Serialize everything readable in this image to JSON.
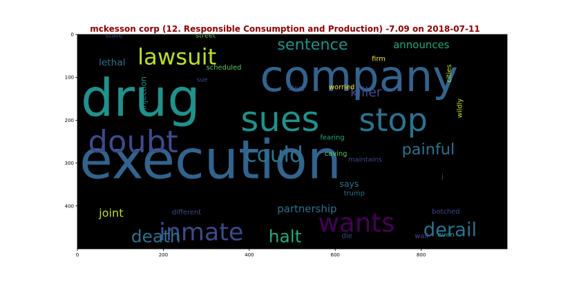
{
  "chart_data": {
    "type": "wordcloud",
    "title": "mckesson corp (12. Responsible Consumption and Production) -7.09 on 2018-07-11",
    "xlim": [
      0,
      1000
    ],
    "ylim": [
      500,
      0
    ],
    "x_ticks": [
      0,
      200,
      400,
      600,
      800
    ],
    "y_ticks": [
      0,
      100,
      200,
      300,
      400
    ],
    "background": "#000000",
    "words": [
      {
        "text": "execution",
        "x": 5,
        "y": 335,
        "size": 125,
        "color": "#33638d"
      },
      {
        "text": "drug",
        "x": 8,
        "y": 190,
        "size": 120,
        "color": "#21918c"
      },
      {
        "text": "company",
        "x": 425,
        "y": 132,
        "size": 100,
        "color": "#33638d"
      },
      {
        "text": "sues",
        "x": 380,
        "y": 225,
        "size": 80,
        "color": "#21918c"
      },
      {
        "text": "stop",
        "x": 655,
        "y": 225,
        "size": 74,
        "color": "#2c728e"
      },
      {
        "text": "doubt",
        "x": 25,
        "y": 275,
        "size": 72,
        "color": "#3e4a89"
      },
      {
        "text": "wants",
        "x": 560,
        "y": 460,
        "size": 60,
        "color": "#440154"
      },
      {
        "text": "lawsuit",
        "x": 140,
        "y": 70,
        "size": 52,
        "color": "#bddf26"
      },
      {
        "text": "inmate",
        "x": 190,
        "y": 480,
        "size": 56,
        "color": "#3e4a89"
      },
      {
        "text": "could",
        "x": 390,
        "y": 297,
        "size": 50,
        "color": "#2c728e"
      },
      {
        "text": "derail",
        "x": 805,
        "y": 470,
        "size": 44,
        "color": "#2c728e"
      },
      {
        "text": "sentence",
        "x": 465,
        "y": 35,
        "size": 36,
        "color": "#21918c"
      },
      {
        "text": "painful",
        "x": 755,
        "y": 280,
        "size": 36,
        "color": "#2c728e"
      },
      {
        "text": "halt",
        "x": 445,
        "y": 485,
        "size": 40,
        "color": "#22a884"
      },
      {
        "text": "death",
        "x": 125,
        "y": 485,
        "size": 40,
        "color": "#2c728e"
      },
      {
        "text": "killer",
        "x": 635,
        "y": 145,
        "size": 30,
        "color": "#3e4a89"
      },
      {
        "text": "announces",
        "x": 735,
        "y": 32,
        "size": 24,
        "color": "#22a884"
      },
      {
        "text": "partnership",
        "x": 465,
        "y": 415,
        "size": 24,
        "color": "#2c728e"
      },
      {
        "text": "joint",
        "x": 50,
        "y": 425,
        "size": 26,
        "color": "#bddf26"
      },
      {
        "text": "lethal",
        "x": 50,
        "y": 72,
        "size": 22,
        "color": "#2c728e"
      },
      {
        "text": "says",
        "x": 610,
        "y": 355,
        "size": 20,
        "color": "#2c728e"
      },
      {
        "text": "injection",
        "x": 160,
        "y": 175,
        "size": 18,
        "color": "#21918c",
        "rotate": -90
      },
      {
        "text": "wildly",
        "x": 895,
        "y": 195,
        "size": 16,
        "color": "#bddf26",
        "rotate": -90
      },
      {
        "text": "cities",
        "x": 870,
        "y": 112,
        "size": 16,
        "color": "#bddf26",
        "rotate": -90
      },
      {
        "text": "worried",
        "x": 585,
        "y": 128,
        "size": 16,
        "color": "#fde725"
      },
      {
        "text": "fearing",
        "x": 565,
        "y": 245,
        "size": 16,
        "color": "#22a884"
      },
      {
        "text": "caving",
        "x": 575,
        "y": 283,
        "size": 16,
        "color": "#5ec962"
      },
      {
        "text": "maintains",
        "x": 630,
        "y": 297,
        "size": 16,
        "color": "#3e4a89"
      },
      {
        "text": "botched",
        "x": 825,
        "y": 418,
        "size": 16,
        "color": "#3e4a89"
      },
      {
        "text": "different",
        "x": 220,
        "y": 420,
        "size": 16,
        "color": "#3e4a89"
      },
      {
        "text": "firm",
        "x": 685,
        "y": 62,
        "size": 16,
        "color": "#fde725"
      },
      {
        "text": "scheduled",
        "x": 300,
        "y": 82,
        "size": 16,
        "color": "#5ec962"
      },
      {
        "text": "state",
        "x": 65,
        "y": 7,
        "size": 16,
        "color": "#3e4a89"
      },
      {
        "text": "street",
        "x": 275,
        "y": 7,
        "size": 16,
        "color": "#5ec962"
      },
      {
        "text": "story",
        "x": 490,
        "y": 130,
        "size": 16,
        "color": "#3e4a89"
      },
      {
        "text": "sue",
        "x": 278,
        "y": 110,
        "size": 14,
        "color": "#3e4a89"
      },
      {
        "text": "trump",
        "x": 620,
        "y": 375,
        "size": 16,
        "color": "#2c728e"
      },
      {
        "text": "die",
        "x": 615,
        "y": 475,
        "size": 16,
        "color": "#3e4a89"
      },
      {
        "text": "wall",
        "x": 785,
        "y": 475,
        "size": 16,
        "color": "#3e4a89"
      },
      {
        "text": "even",
        "x": 838,
        "y": 472,
        "size": 16,
        "color": "#21918c"
      },
      {
        "text": "j",
        "x": 847,
        "y": 335,
        "size": 16,
        "color": "#3e4a89"
      }
    ]
  }
}
